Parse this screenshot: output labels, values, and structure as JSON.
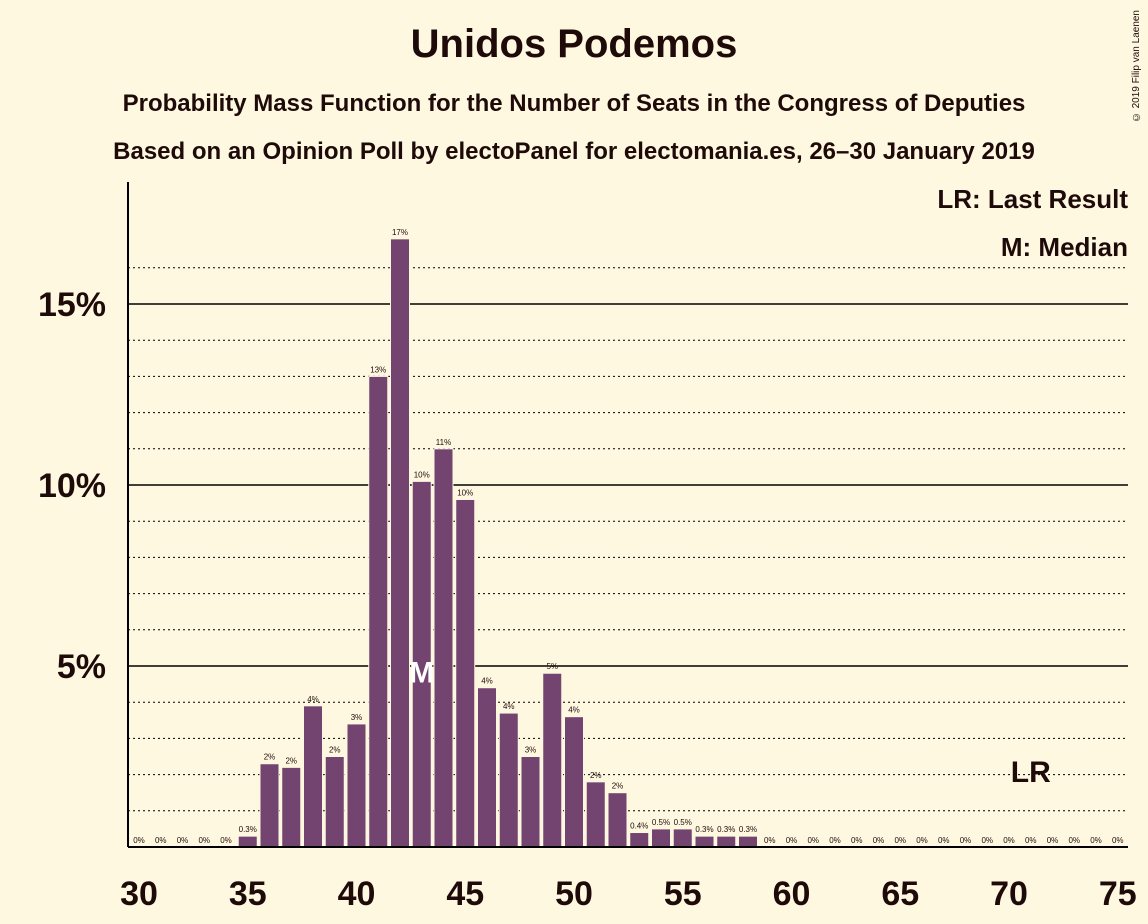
{
  "title": "Unidos Podemos",
  "subtitle": "Probability Mass Function for the Number of Seats in the Congress of Deputies",
  "subtitle2": "Based on an Opinion Poll by electoPanel for electomania.es, 26–30 January 2019",
  "copyright": "© 2019 Filip van Laenen",
  "legend": {
    "lr": "LR: Last Result",
    "m": "M: Median"
  },
  "markers": {
    "median_label": "M",
    "median_seat": 43,
    "last_result_label": "LR",
    "last_result_seat": 71
  },
  "colors": {
    "bar": "#734470",
    "background": "#fff8e1",
    "text": "#1f0a0a"
  },
  "chart_data": {
    "type": "bar",
    "x": [
      30,
      31,
      32,
      33,
      34,
      35,
      36,
      37,
      38,
      39,
      40,
      41,
      42,
      43,
      44,
      45,
      46,
      47,
      48,
      49,
      50,
      51,
      52,
      53,
      54,
      55,
      56,
      57,
      58,
      59,
      60,
      61,
      62,
      63,
      64,
      65,
      66,
      67,
      68,
      69,
      70,
      71,
      72,
      73,
      74,
      75
    ],
    "values": [
      0,
      0,
      0,
      0,
      0,
      0.3,
      2.3,
      2.2,
      3.9,
      2.5,
      3.4,
      13.0,
      16.8,
      10.1,
      11.0,
      9.6,
      4.4,
      3.7,
      2.5,
      4.8,
      3.6,
      1.8,
      1.5,
      0.4,
      0.5,
      0.5,
      0.3,
      0.3,
      0.3,
      0,
      0,
      0,
      0,
      0,
      0,
      0,
      0,
      0,
      0,
      0,
      0,
      0,
      0,
      0,
      0,
      0
    ],
    "labels": [
      "0%",
      "0%",
      "0%",
      "0%",
      "0%",
      "0.3%",
      "2%",
      "2%",
      "4%",
      "2%",
      "3%",
      "13%",
      "17%",
      "10%",
      "11%",
      "10%",
      "4%",
      "4%",
      "3%",
      "5%",
      "4%",
      "2%",
      "2%",
      "0.4%",
      "0.5%",
      "0.5%",
      "0.3%",
      "0.3%",
      "0.3%",
      "0%",
      "0%",
      "0%",
      "0%",
      "0%",
      "0%",
      "0%",
      "0%",
      "0%",
      "0%",
      "0%",
      "0%",
      "0%",
      "0%",
      "0%",
      "0%",
      "0%"
    ],
    "xticks": [
      "30",
      "35",
      "40",
      "45",
      "50",
      "55",
      "60",
      "65",
      "70",
      "75"
    ],
    "yticks": [
      "5%",
      "10%",
      "15%"
    ],
    "ylim": [
      0,
      18
    ],
    "xlim": [
      29.5,
      75.5
    ],
    "grid": true
  }
}
